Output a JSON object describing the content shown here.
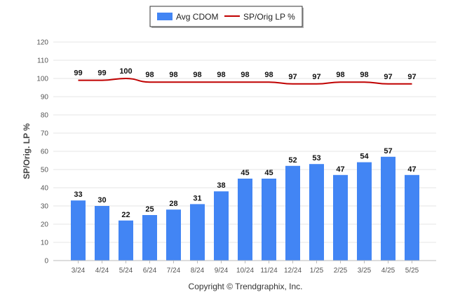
{
  "chart_data": {
    "type": "bar",
    "categories": [
      "3/24",
      "4/24",
      "5/24",
      "6/24",
      "7/24",
      "8/24",
      "9/24",
      "10/24",
      "11/24",
      "12/24",
      "1/25",
      "2/25",
      "3/25",
      "4/25",
      "5/25"
    ],
    "series": [
      {
        "name": "Avg CDOM",
        "type": "bar",
        "color": "#4285f4",
        "values": [
          33,
          30,
          22,
          25,
          28,
          31,
          38,
          45,
          45,
          52,
          53,
          47,
          54,
          57,
          47
        ]
      },
      {
        "name": "SP/Orig LP %",
        "type": "line",
        "color": "#c00000",
        "values": [
          99,
          99,
          100,
          98,
          98,
          98,
          98,
          98,
          98,
          97,
          97,
          98,
          98,
          97,
          97
        ]
      }
    ],
    "ylabel": "SP/Orig. LP %",
    "xlabel": "",
    "ylim": [
      0,
      120
    ],
    "yticks": [
      0,
      10,
      20,
      30,
      40,
      50,
      60,
      70,
      80,
      90,
      100,
      110,
      120
    ],
    "grid": true,
    "legend_position": "top-center"
  },
  "footer": {
    "copyright": "Copyright © Trendgraphix, Inc."
  }
}
